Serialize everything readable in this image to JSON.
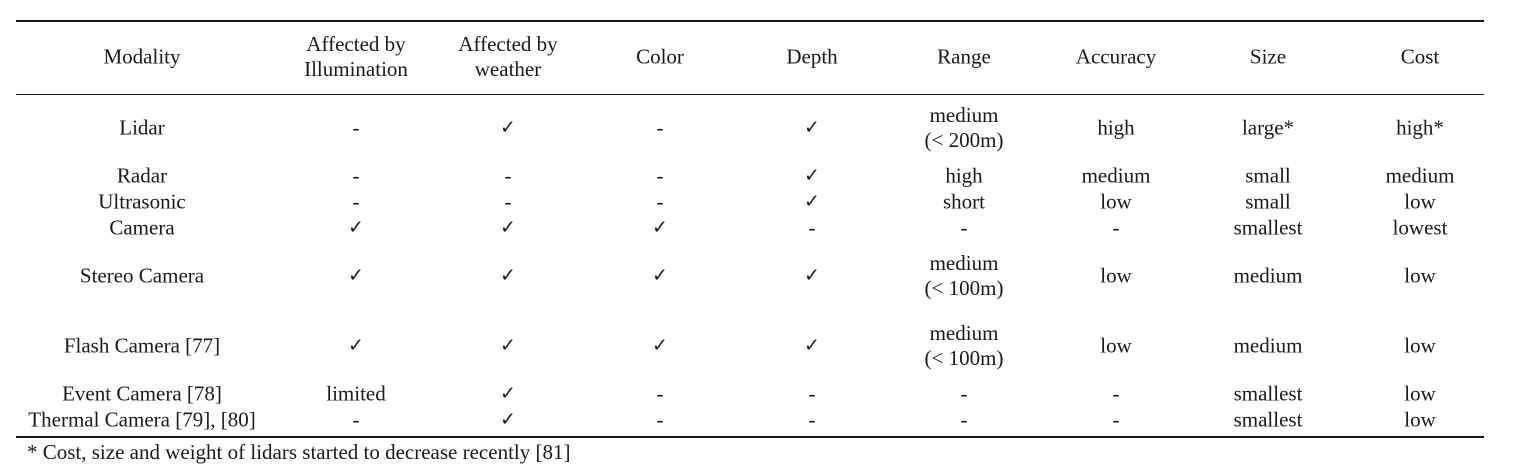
{
  "table": {
    "headers": [
      [
        "Modality"
      ],
      [
        "Affected by",
        "Illumination"
      ],
      [
        "Affected by",
        "weather"
      ],
      [
        "Color"
      ],
      [
        "Depth"
      ],
      [
        "Range"
      ],
      [
        "Accuracy"
      ],
      [
        "Size"
      ],
      [
        "Cost"
      ]
    ],
    "rows": [
      [
        [
          "Lidar"
        ],
        [
          "-"
        ],
        [
          "✓"
        ],
        [
          "-"
        ],
        [
          "✓"
        ],
        [
          "medium",
          "(< 200m)"
        ],
        [
          "high"
        ],
        [
          "large*"
        ],
        [
          "high*"
        ]
      ],
      [
        [
          "Radar"
        ],
        [
          "-"
        ],
        [
          "-"
        ],
        [
          "-"
        ],
        [
          "✓"
        ],
        [
          "high"
        ],
        [
          "medium"
        ],
        [
          "small"
        ],
        [
          "medium"
        ]
      ],
      [
        [
          "Ultrasonic"
        ],
        [
          "-"
        ],
        [
          "-"
        ],
        [
          "-"
        ],
        [
          "✓"
        ],
        [
          "short"
        ],
        [
          "low"
        ],
        [
          "small"
        ],
        [
          "low"
        ]
      ],
      [
        [
          "Camera"
        ],
        [
          "✓"
        ],
        [
          "✓"
        ],
        [
          "✓"
        ],
        [
          "-"
        ],
        [
          "-"
        ],
        [
          "-"
        ],
        [
          "smallest"
        ],
        [
          "lowest"
        ]
      ],
      [
        [
          "Stereo Camera"
        ],
        [
          "✓"
        ],
        [
          "✓"
        ],
        [
          "✓"
        ],
        [
          "✓"
        ],
        [
          "medium",
          "(< 100m)"
        ],
        [
          "low"
        ],
        [
          "medium"
        ],
        [
          "low"
        ]
      ],
      [
        [
          "Flash Camera [77]"
        ],
        [
          "✓"
        ],
        [
          "✓"
        ],
        [
          "✓"
        ],
        [
          "✓"
        ],
        [
          "medium",
          "(< 100m)"
        ],
        [
          "low"
        ],
        [
          "medium"
        ],
        [
          "low"
        ]
      ],
      [
        [
          "Event Camera [78]"
        ],
        [
          "limited"
        ],
        [
          "✓"
        ],
        [
          "-"
        ],
        [
          "-"
        ],
        [
          "-"
        ],
        [
          "-"
        ],
        [
          "smallest"
        ],
        [
          "low"
        ]
      ],
      [
        [
          "Thermal Camera [79], [80]"
        ],
        [
          "-"
        ],
        [
          "✓"
        ],
        [
          "-"
        ],
        [
          "-"
        ],
        [
          "-"
        ],
        [
          "-"
        ],
        [
          "smallest"
        ],
        [
          "low"
        ]
      ]
    ],
    "footnote": "* Cost, size and weight of lidars started to decrease recently [81]"
  }
}
